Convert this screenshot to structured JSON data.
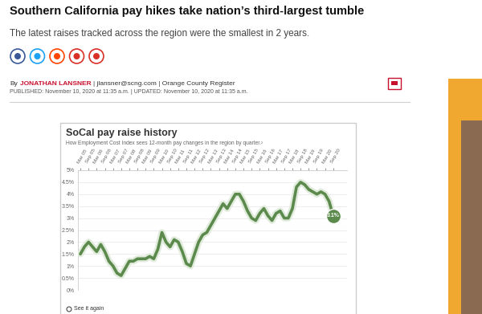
{
  "headline": "Southern California pay hikes take nation’s third-largest tumble",
  "subtitle": "The latest raises tracked across the region were the smallest in 2 years.",
  "byline": {
    "prefix": "By",
    "author": "JONATHAN LANSNER",
    "rest": "| jlansner@scng.com | Orange County Register"
  },
  "dateline": "PUBLISHED: November 10, 2020 at 11:35 a.m. | UPDATED: November 10, 2020 at 11:35 a.m.",
  "chart_footer": "See it again",
  "chart_data": {
    "type": "line",
    "title": "SoCal pay raise history",
    "subtitle": "How Employment Cost Index sees 12-month pay changes in the region by quarter.›",
    "categories": [
      "Mar 05",
      null,
      "Sep 05",
      null,
      "Mar 06",
      null,
      "Sep 06",
      null,
      "Mar 07",
      null,
      "Sep 07",
      null,
      "Mar 08",
      null,
      "Sep 08",
      null,
      "Mar 09",
      null,
      "Sep 09",
      null,
      "Mar 10",
      null,
      "Sep 10",
      null,
      "Mar 11",
      null,
      "Sep 11",
      null,
      "Mar 12",
      null,
      "Sep 12",
      null,
      "Mar 13",
      null,
      "Sep 13",
      null,
      "Mar 14",
      null,
      "Sep 14",
      null,
      "Mar 15",
      null,
      "Sep 15",
      null,
      "Mar 16",
      null,
      "Sep 16",
      null,
      "Mar 17",
      null,
      "Sep 17",
      null,
      "Mar 18",
      null,
      "Sep 18",
      null,
      "Mar 19",
      null,
      "Sep 19",
      null,
      "Mar 20",
      null,
      "Sep 20"
    ],
    "values": [
      1.5,
      1.8,
      2.0,
      1.8,
      1.6,
      1.9,
      1.6,
      1.2,
      1.0,
      0.7,
      0.6,
      0.9,
      1.2,
      1.2,
      1.3,
      1.3,
      1.3,
      1.4,
      1.3,
      1.7,
      2.4,
      2.0,
      1.8,
      2.1,
      2.0,
      1.6,
      1.1,
      1.0,
      1.5,
      2.0,
      2.3,
      2.4,
      2.7,
      3.0,
      3.3,
      3.6,
      3.4,
      3.7,
      4.0,
      4.0,
      3.7,
      3.3,
      3.0,
      2.9,
      3.2,
      3.4,
      3.1,
      2.9,
      3.2,
      3.3,
      3.0,
      3.0,
      3.4,
      4.3,
      4.5,
      4.4,
      4.2,
      4.1,
      4.0,
      4.1,
      4.0,
      3.7,
      3.1
    ],
    "data_labels": true,
    "value_labels": [
      null,
      null,
      null,
      null,
      null,
      null,
      null,
      null,
      null,
      null,
      null,
      null,
      null,
      null,
      null,
      null,
      null,
      null,
      null,
      null,
      null,
      null,
      null,
      null,
      null,
      null,
      null,
      null,
      null,
      null,
      null,
      null,
      null,
      null,
      null,
      null,
      null,
      null,
      null,
      null,
      null,
      null,
      null,
      null,
      null,
      null,
      null,
      null,
      null,
      null,
      null,
      null,
      null,
      null,
      null,
      null,
      null,
      null,
      null,
      null,
      null,
      null,
      "3.1%"
    ],
    "color": "#5b8a4c",
    "ylim": [
      0,
      5
    ],
    "yticks": [
      {
        "value": 0,
        "label": "0%"
      },
      {
        "value": 0.5,
        "label": "0.5%"
      },
      {
        "value": 1,
        "label": "1%"
      },
      {
        "value": 1.5,
        "label": "1.5%"
      },
      {
        "value": 2,
        "label": "2%"
      },
      {
        "value": 2.5,
        "label": "2.5%"
      },
      {
        "value": 3,
        "label": "3%"
      },
      {
        "value": 3.5,
        "label": "3.5%"
      },
      {
        "value": 4,
        "label": "4%"
      },
      {
        "value": 4.5,
        "label": "4.5%"
      },
      {
        "value": 5,
        "label": "5%"
      }
    ],
    "grid": true
  }
}
